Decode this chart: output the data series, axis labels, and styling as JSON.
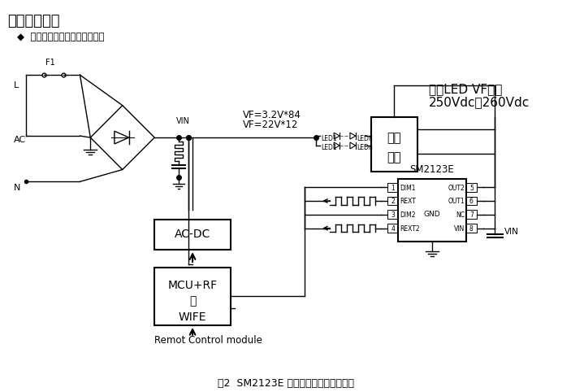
{
  "title": "典型应用方案",
  "subtitle": "◆  典型系统应用一（单颗芯片）",
  "caption": "图2  SM2123E 智能冷暖双色恒功率系统",
  "vf_text1": "VF=3.2V*84",
  "vf_text2": "VF=22V*12",
  "led_group_title": "单组LED VF总值",
  "led_group_range": "250Vdc－260Vdc",
  "cold_white": "冷白",
  "warm_white": "暖白",
  "ic_name": "SM2123E",
  "ac_dc_label": "AC-DC",
  "mcu_label1": "MCU+RF",
  "mcu_label2": "或",
  "mcu_label3": "WIFE",
  "remot_label": "Remot Control module",
  "vin_label": "VIN",
  "ac_label": "AC",
  "n_label": "N",
  "l_label": "L",
  "f1_label": "F1",
  "bg_color": "#ffffff",
  "line_color": "#000000"
}
